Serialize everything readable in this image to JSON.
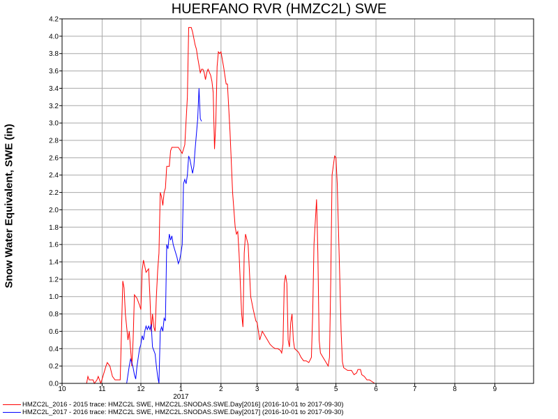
{
  "chart_data": {
    "type": "line",
    "title": "HUERFANO RVR (HMZC2L) SWE",
    "ylabel": "Snow Water Equivalent, SWE (in)",
    "xlabel": "",
    "ylim": [
      0,
      4.2
    ],
    "y_ticks": [
      0.0,
      0.2,
      0.4,
      0.6,
      0.8,
      1.0,
      1.2,
      1.4,
      1.6,
      1.8,
      2.0,
      2.2,
      2.4,
      2.6,
      2.8,
      3.0,
      3.2,
      3.4,
      3.6,
      3.8,
      4.0,
      4.2
    ],
    "x_ticks": [
      "10",
      "11",
      "12",
      "1",
      "2",
      "3",
      "4",
      "5",
      "6",
      "7",
      "8",
      "9"
    ],
    "x_tick_dates": [
      "2016-10-01",
      "2016-11-01",
      "2016-12-01",
      "2017-01-01",
      "2017-02-01",
      "2017-03-01",
      "2017-04-01",
      "2017-05-01",
      "2017-06-01",
      "2017-07-01",
      "2017-08-01",
      "2017-09-01"
    ],
    "xlim": [
      "2016-10-01",
      "2017-09-30"
    ],
    "year_label": "2017",
    "grid": true,
    "legend_position": "bottom",
    "series": [
      {
        "name": "HMZC2L_2016 - 2015 trace: HMZC2L SWE, HMZC2L.SNODAS.SWE.Day[2016] (2016-10-01 to 2017-09-30)",
        "color": "#ff0000",
        "points": [
          [
            "2016-10-20",
            0
          ],
          [
            "2016-10-21",
            0.08
          ],
          [
            "2016-10-22",
            0.04
          ],
          [
            "2016-10-25",
            0.04
          ],
          [
            "2016-10-26",
            0
          ],
          [
            "2016-10-28",
            0.04
          ],
          [
            "2016-10-29",
            0.08
          ],
          [
            "2016-10-30",
            0.04
          ],
          [
            "2016-10-31",
            0
          ],
          [
            "2016-11-02",
            0.1
          ],
          [
            "2016-11-04",
            0.2
          ],
          [
            "2016-11-05",
            0.24
          ],
          [
            "2016-11-07",
            0.2
          ],
          [
            "2016-11-09",
            0.08
          ],
          [
            "2016-11-11",
            0.04
          ],
          [
            "2016-11-15",
            0.04
          ],
          [
            "2016-11-16",
            0.6
          ],
          [
            "2016-11-17",
            1.18
          ],
          [
            "2016-11-18",
            1.1
          ],
          [
            "2016-11-19",
            0.8
          ],
          [
            "2016-11-21",
            0.5
          ],
          [
            "2016-11-22",
            0.6
          ],
          [
            "2016-11-24",
            0.2
          ],
          [
            "2016-11-25",
            0.5
          ],
          [
            "2016-11-26",
            1.02
          ],
          [
            "2016-11-28",
            0.98
          ],
          [
            "2016-11-30",
            0.9
          ],
          [
            "2016-12-01",
            0.85
          ],
          [
            "2016-12-02",
            1.3
          ],
          [
            "2016-12-03",
            1.42
          ],
          [
            "2016-12-05",
            1.28
          ],
          [
            "2016-12-07",
            1.32
          ],
          [
            "2016-12-08",
            1.0
          ],
          [
            "2016-12-09",
            0.6
          ],
          [
            "2016-12-10",
            0.8
          ],
          [
            "2016-12-11",
            0.65
          ],
          [
            "2016-12-12",
            0.6
          ],
          [
            "2016-12-13",
            1.0
          ],
          [
            "2016-12-14",
            1.3
          ],
          [
            "2016-12-15",
            1.5
          ],
          [
            "2016-12-16",
            2.2
          ],
          [
            "2016-12-17",
            2.15
          ],
          [
            "2016-12-18",
            2.05
          ],
          [
            "2016-12-19",
            2.2
          ],
          [
            "2016-12-20",
            2.25
          ],
          [
            "2016-12-21",
            2.5
          ],
          [
            "2016-12-23",
            2.5
          ],
          [
            "2016-12-24",
            2.68
          ],
          [
            "2016-12-25",
            2.72
          ],
          [
            "2016-12-30",
            2.72
          ],
          [
            "2017-01-02",
            2.65
          ],
          [
            "2017-01-04",
            2.75
          ],
          [
            "2017-01-06",
            3.3
          ],
          [
            "2017-01-07",
            4.1
          ],
          [
            "2017-01-09",
            4.1
          ],
          [
            "2017-01-10",
            4.05
          ],
          [
            "2017-01-12",
            3.9
          ],
          [
            "2017-01-13",
            3.85
          ],
          [
            "2017-01-14",
            3.75
          ],
          [
            "2017-01-16",
            3.58
          ],
          [
            "2017-01-17",
            3.62
          ],
          [
            "2017-01-18",
            3.62
          ],
          [
            "2017-01-19",
            3.58
          ],
          [
            "2017-01-20",
            3.5
          ],
          [
            "2017-01-21",
            3.58
          ],
          [
            "2017-01-22",
            3.62
          ],
          [
            "2017-01-24",
            3.55
          ],
          [
            "2017-01-25",
            3.48
          ],
          [
            "2017-01-26",
            3.35
          ],
          [
            "2017-01-27",
            2.7
          ],
          [
            "2017-01-28",
            3.0
          ],
          [
            "2017-01-29",
            3.65
          ],
          [
            "2017-01-30",
            3.82
          ],
          [
            "2017-01-31",
            3.8
          ],
          [
            "2017-02-01",
            3.82
          ],
          [
            "2017-02-03",
            3.65
          ],
          [
            "2017-02-05",
            3.45
          ],
          [
            "2017-02-06",
            3.45
          ],
          [
            "2017-02-08",
            2.9
          ],
          [
            "2017-02-10",
            2.2
          ],
          [
            "2017-02-12",
            1.8
          ],
          [
            "2017-02-13",
            1.72
          ],
          [
            "2017-02-14",
            1.75
          ],
          [
            "2017-02-15",
            1.5
          ],
          [
            "2017-02-17",
            0.8
          ],
          [
            "2017-02-18",
            0.65
          ],
          [
            "2017-02-19",
            1.5
          ],
          [
            "2017-02-20",
            1.72
          ],
          [
            "2017-02-22",
            1.6
          ],
          [
            "2017-02-24",
            1.0
          ],
          [
            "2017-02-26",
            0.85
          ],
          [
            "2017-02-28",
            0.72
          ],
          [
            "2017-03-01",
            0.7
          ],
          [
            "2017-03-02",
            0.6
          ],
          [
            "2017-03-03",
            0.5
          ],
          [
            "2017-03-05",
            0.6
          ],
          [
            "2017-03-07",
            0.55
          ],
          [
            "2017-03-09",
            0.5
          ],
          [
            "2017-03-11",
            0.45
          ],
          [
            "2017-03-13",
            0.42
          ],
          [
            "2017-03-15",
            0.4
          ],
          [
            "2017-03-17",
            0.4
          ],
          [
            "2017-03-19",
            0.38
          ],
          [
            "2017-03-20",
            0.35
          ],
          [
            "2017-03-21",
            0.45
          ],
          [
            "2017-03-22",
            1.15
          ],
          [
            "2017-03-23",
            1.25
          ],
          [
            "2017-03-24",
            1.15
          ],
          [
            "2017-03-25",
            0.5
          ],
          [
            "2017-03-26",
            0.42
          ],
          [
            "2017-03-27",
            0.7
          ],
          [
            "2017-03-28",
            0.8
          ],
          [
            "2017-03-29",
            0.5
          ],
          [
            "2017-03-30",
            0.4
          ],
          [
            "2017-04-02",
            0.36
          ],
          [
            "2017-04-04",
            0.3
          ],
          [
            "2017-04-06",
            0.26
          ],
          [
            "2017-04-08",
            0.26
          ],
          [
            "2017-04-10",
            0.24
          ],
          [
            "2017-04-12",
            0.3
          ],
          [
            "2017-04-13",
            0.8
          ],
          [
            "2017-04-14",
            1.6
          ],
          [
            "2017-04-16",
            2.12
          ],
          [
            "2017-04-17",
            1.5
          ],
          [
            "2017-04-18",
            0.5
          ],
          [
            "2017-04-19",
            0.35
          ],
          [
            "2017-04-21",
            0.3
          ],
          [
            "2017-04-23",
            0.25
          ],
          [
            "2017-04-25",
            0.2
          ],
          [
            "2017-04-26",
            0.3
          ],
          [
            "2017-04-27",
            1.2
          ],
          [
            "2017-04-28",
            2.4
          ],
          [
            "2017-04-30",
            2.62
          ],
          [
            "2017-05-01",
            2.6
          ],
          [
            "2017-05-02",
            2.3
          ],
          [
            "2017-05-04",
            1.2
          ],
          [
            "2017-05-05",
            0.6
          ],
          [
            "2017-05-06",
            0.25
          ],
          [
            "2017-05-07",
            0.18
          ],
          [
            "2017-05-10",
            0.15
          ],
          [
            "2017-05-13",
            0.15
          ],
          [
            "2017-05-15",
            0.1
          ],
          [
            "2017-05-17",
            0.12
          ],
          [
            "2017-05-18",
            0.16
          ],
          [
            "2017-05-20",
            0.16
          ],
          [
            "2017-05-21",
            0.1
          ],
          [
            "2017-05-23",
            0.08
          ],
          [
            "2017-05-25",
            0.04
          ],
          [
            "2017-05-27",
            0.04
          ],
          [
            "2017-05-29",
            0.02
          ],
          [
            "2017-05-31",
            0
          ]
        ]
      },
      {
        "name": "HMZC2L_2017 - 2016 trace: HMZC2L SWE, HMZC2L.SNODAS.SWE.Day[2017] (2016-10-01 to 2017-09-30)",
        "color": "#0000ff",
        "points": [
          [
            "2016-11-20",
            0
          ],
          [
            "2016-11-22",
            0.2
          ],
          [
            "2016-11-23",
            0.28
          ],
          [
            "2016-11-24",
            0.24
          ],
          [
            "2016-11-25",
            0.18
          ],
          [
            "2016-11-26",
            0.1
          ],
          [
            "2016-11-27",
            0.05
          ],
          [
            "2016-11-28",
            0.2
          ],
          [
            "2016-11-29",
            0.3
          ],
          [
            "2016-11-30",
            0.4
          ],
          [
            "2016-12-01",
            0.45
          ],
          [
            "2016-12-02",
            0.55
          ],
          [
            "2016-12-03",
            0.5
          ],
          [
            "2016-12-04",
            0.6
          ],
          [
            "2016-12-05",
            0.66
          ],
          [
            "2016-12-06",
            0.62
          ],
          [
            "2016-12-07",
            0.66
          ],
          [
            "2016-12-08",
            0.62
          ],
          [
            "2016-12-09",
            0.68
          ],
          [
            "2016-12-10",
            0.42
          ],
          [
            "2016-12-11",
            0.38
          ],
          [
            "2016-12-12",
            0.34
          ],
          [
            "2016-12-13",
            0.2
          ],
          [
            "2016-12-14",
            0.08
          ],
          [
            "2016-12-15",
            0
          ],
          [
            "2016-12-16",
            0.6
          ],
          [
            "2016-12-17",
            0.65
          ],
          [
            "2016-12-18",
            0.6
          ],
          [
            "2016-12-19",
            0.75
          ],
          [
            "2016-12-20",
            0.72
          ],
          [
            "2016-12-21",
            1.6
          ],
          [
            "2016-12-22",
            1.55
          ],
          [
            "2016-12-23",
            1.72
          ],
          [
            "2016-12-24",
            1.65
          ],
          [
            "2016-12-25",
            1.7
          ],
          [
            "2016-12-26",
            1.6
          ],
          [
            "2016-12-28",
            1.5
          ],
          [
            "2016-12-29",
            1.45
          ],
          [
            "2016-12-30",
            1.38
          ],
          [
            "2016-12-31",
            1.42
          ],
          [
            "2017-01-01",
            1.5
          ],
          [
            "2017-01-02",
            1.6
          ],
          [
            "2017-01-03",
            2.3
          ],
          [
            "2017-01-04",
            2.35
          ],
          [
            "2017-01-05",
            2.3
          ],
          [
            "2017-01-06",
            2.4
          ],
          [
            "2017-01-07",
            2.62
          ],
          [
            "2017-01-08",
            2.58
          ],
          [
            "2017-01-09",
            2.5
          ],
          [
            "2017-01-10",
            2.42
          ],
          [
            "2017-01-11",
            2.5
          ],
          [
            "2017-01-12",
            2.7
          ],
          [
            "2017-01-14",
            3.05
          ],
          [
            "2017-01-15",
            3.4
          ],
          [
            "2017-01-16",
            3.05
          ],
          [
            "2017-01-17",
            3.02
          ]
        ]
      }
    ]
  }
}
